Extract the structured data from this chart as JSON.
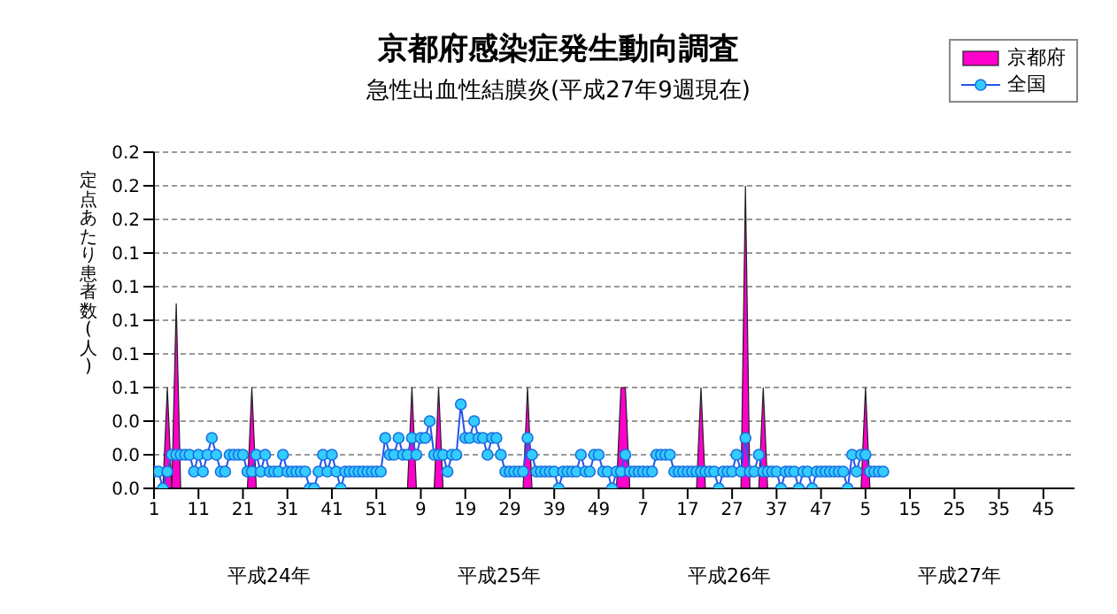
{
  "chart_data": {
    "type": "line",
    "title": "京都府感染症発生動向調査",
    "subtitle": "急性出血性結膜炎(平成27年9週現在)",
    "ylabel": "定点あたり患者数(人)",
    "categories": [
      "1",
      null,
      null,
      null,
      null,
      null,
      null,
      null,
      null,
      null,
      "11",
      null,
      null,
      null,
      null,
      null,
      null,
      null,
      null,
      null,
      "21",
      null,
      null,
      null,
      null,
      null,
      null,
      null,
      null,
      null,
      "31",
      null,
      null,
      null,
      null,
      null,
      null,
      null,
      null,
      null,
      "41",
      null,
      null,
      null,
      null,
      null,
      null,
      null,
      null,
      null,
      "51",
      null,
      null,
      null,
      null,
      null,
      null,
      null,
      null,
      null,
      "9",
      null,
      null,
      null,
      null,
      null,
      null,
      null,
      null,
      null,
      "19",
      null,
      null,
      null,
      null,
      null,
      null,
      null,
      null,
      null,
      "29",
      null,
      null,
      null,
      null,
      null,
      null,
      null,
      null,
      null,
      "39",
      null,
      null,
      null,
      null,
      null,
      null,
      null,
      null,
      null,
      "49",
      null,
      null,
      null,
      null,
      null,
      null,
      null,
      null,
      null,
      "7",
      null,
      null,
      null,
      null,
      null,
      null,
      null,
      null,
      null,
      "17",
      null,
      null,
      null,
      null,
      null,
      null,
      null,
      null,
      null,
      "27",
      null,
      null,
      null,
      null,
      null,
      null,
      null,
      null,
      null,
      "37",
      null,
      null,
      null,
      null,
      null,
      null,
      null,
      null,
      null,
      "47",
      null,
      null,
      null,
      null,
      null,
      null,
      null,
      null,
      null,
      "5",
      null,
      null,
      null,
      null,
      null,
      null,
      null,
      null,
      null,
      "15",
      null,
      null,
      null,
      null,
      null,
      null,
      null,
      null,
      null,
      "25",
      null,
      null,
      null,
      null,
      null,
      null,
      null,
      null,
      null,
      "35",
      null,
      null,
      null,
      null,
      null,
      null,
      null,
      null,
      null,
      "45",
      null,
      null,
      null,
      null,
      null,
      null,
      null
    ],
    "series": [
      {
        "name": "京都府",
        "type": "area",
        "color": "#ff00cc",
        "values": [
          0,
          0,
          0,
          0.06,
          0,
          0.11,
          0,
          0,
          0,
          0,
          0,
          0,
          0,
          0,
          0,
          0,
          0,
          0,
          0,
          0,
          0,
          0,
          0.06,
          0,
          0,
          0,
          0,
          0,
          0,
          0,
          0,
          0,
          0,
          0,
          0,
          0,
          0,
          0,
          0,
          0,
          0,
          0,
          0,
          0,
          0,
          0,
          0,
          0,
          0,
          0,
          0,
          0,
          0,
          0,
          0,
          0,
          0,
          0,
          0.06,
          0,
          0,
          0,
          0,
          0,
          0.06,
          0,
          0,
          0,
          0,
          0,
          0,
          0,
          0,
          0,
          0,
          0,
          0,
          0,
          0,
          0,
          0,
          0,
          0,
          0,
          0.06,
          0,
          0,
          0,
          0,
          0,
          0,
          0,
          0,
          0,
          0,
          0,
          0,
          0,
          0,
          0,
          0,
          0,
          0,
          0,
          0,
          0.06,
          0.06,
          0,
          0,
          0,
          0,
          0,
          0,
          0,
          0,
          0,
          0,
          0,
          0,
          0,
          0,
          0,
          0,
          0.06,
          0,
          0,
          0,
          0,
          0,
          0,
          0,
          0,
          0,
          0.18,
          0,
          0,
          0,
          0.06,
          0,
          0,
          0,
          0,
          0,
          0,
          0,
          0,
          0,
          0,
          0,
          0,
          0,
          0,
          0,
          0,
          0,
          0,
          0,
          0,
          0,
          0,
          0.06,
          0,
          0,
          0,
          0,
          null,
          null,
          null,
          null,
          null,
          null,
          null,
          null,
          null,
          null,
          null,
          null,
          null,
          null,
          null,
          null,
          null,
          null,
          null,
          null,
          null,
          null,
          null,
          null,
          null,
          null,
          null,
          null,
          null,
          null,
          null,
          null,
          null,
          null,
          null,
          null,
          null,
          null,
          null,
          null,
          null,
          null,
          null
        ]
      },
      {
        "name": "全国",
        "color": "#33ccff",
        "marker": "circle",
        "values": [
          0.01,
          0.01,
          0,
          0.01,
          0.02,
          0.02,
          0.02,
          0.02,
          0.02,
          0.01,
          0.02,
          0.01,
          0.02,
          0.03,
          0.02,
          0.01,
          0.01,
          0.02,
          0.02,
          0.02,
          0.02,
          0.01,
          0.01,
          0.02,
          0.01,
          0.02,
          0.01,
          0.01,
          0.01,
          0.02,
          0.01,
          0.01,
          0.01,
          0.01,
          0.01,
          0,
          0,
          0.01,
          0.02,
          0.01,
          0.02,
          0.01,
          0,
          0.01,
          0.01,
          0.01,
          0.01,
          0.01,
          0.01,
          0.01,
          0.01,
          0.01,
          0.03,
          0.02,
          0.02,
          0.03,
          0.02,
          0.02,
          0.03,
          0.02,
          0.03,
          0.03,
          0.04,
          0.02,
          0.02,
          0.02,
          0.01,
          0.02,
          0.02,
          0.05,
          0.03,
          0.03,
          0.04,
          0.03,
          0.03,
          0.02,
          0.03,
          0.03,
          0.02,
          0.01,
          0.01,
          0.01,
          0.01,
          0.01,
          0.03,
          0.02,
          0.01,
          0.01,
          0.01,
          0.01,
          0.01,
          0,
          0.01,
          0.01,
          0.01,
          0.01,
          0.02,
          0.01,
          0.01,
          0.02,
          0.02,
          0.01,
          0.01,
          0,
          0.01,
          0.01,
          0.02,
          0.01,
          0.01,
          0.01,
          0.01,
          0.01,
          0.01,
          0.02,
          0.02,
          0.02,
          0.02,
          0.01,
          0.01,
          0.01,
          0.01,
          0.01,
          0.01,
          0.01,
          0.01,
          0.01,
          0.01,
          0,
          0.01,
          0.01,
          0.01,
          0.02,
          0.01,
          0.03,
          0.01,
          0.01,
          0.02,
          0.01,
          0.01,
          0.01,
          0.01,
          0,
          0.01,
          0.01,
          0.01,
          0,
          0.01,
          0.01,
          0,
          0.01,
          0.01,
          0.01,
          0.01,
          0.01,
          0.01,
          0.01,
          0,
          0.02,
          0.01,
          0.02,
          0.02,
          0.01,
          0.01,
          0.01,
          0.01,
          null,
          null,
          null,
          null,
          null,
          null,
          null,
          null,
          null,
          null,
          null,
          null,
          null,
          null,
          null,
          null,
          null,
          null,
          null,
          null,
          null,
          null,
          null,
          null,
          null,
          null,
          null,
          null,
          null,
          null,
          null,
          null,
          null,
          null,
          null,
          null,
          null,
          null,
          null,
          null,
          null,
          null,
          null
        ]
      }
    ],
    "ylim": [
      0,
      0.2
    ],
    "yticks": [
      {
        "value": 0,
        "label": "0.0"
      },
      {
        "value": 0.02,
        "label": "0.0"
      },
      {
        "value": 0.04,
        "label": "0.0"
      },
      {
        "value": 0.06,
        "label": "0.1"
      },
      {
        "value": 0.08,
        "label": "0.1"
      },
      {
        "value": 0.1,
        "label": "0.1"
      },
      {
        "value": 0.12,
        "label": "0.1"
      },
      {
        "value": 0.14,
        "label": "0.1"
      },
      {
        "value": 0.16,
        "label": "0.2"
      },
      {
        "value": 0.18,
        "label": "0.2"
      },
      {
        "value": 0.2,
        "label": "0.2"
      }
    ],
    "grid": "y",
    "legend": "top right",
    "annotations": [
      "平成24年",
      "平成25年",
      "平成26年",
      "平成27年"
    ]
  }
}
